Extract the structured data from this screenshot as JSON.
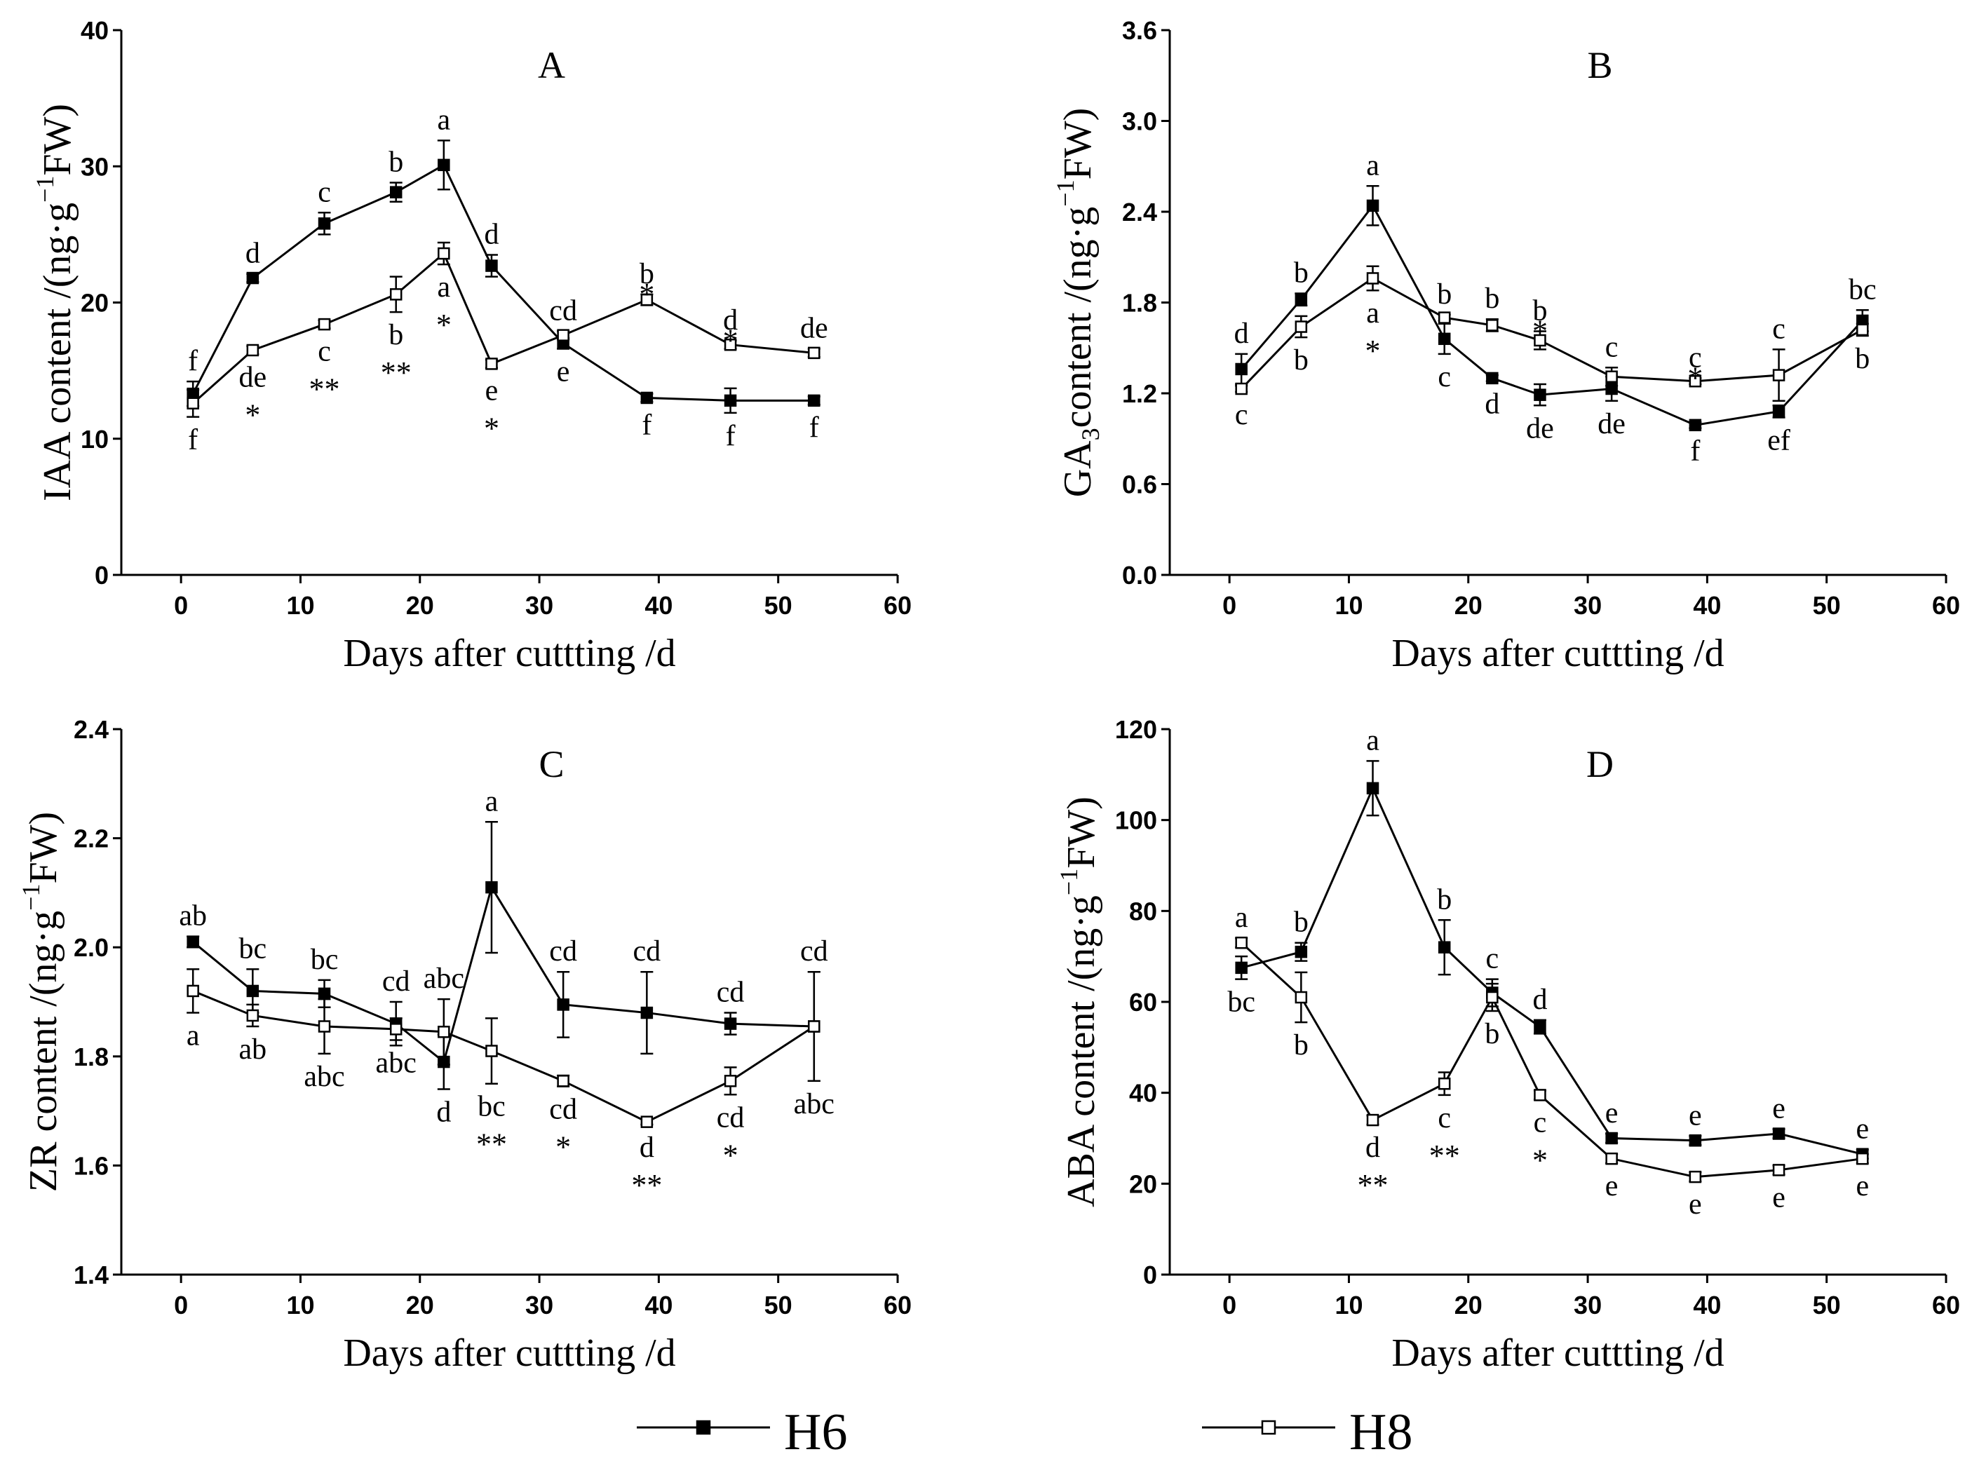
{
  "legend": {
    "position": "bottom",
    "entries": [
      {
        "name": "H6",
        "marker": "filled-square"
      },
      {
        "name": "H8",
        "marker": "open-square"
      }
    ]
  },
  "chart_data": [
    {
      "type": "line",
      "title": "A",
      "xlabel": "Days after cuttting /d",
      "ylabel": {
        "main": "IAA content /(ng·g",
        "sup": "−1",
        "rest": "FW)"
      },
      "xlim": [
        -5,
        60
      ],
      "xticks": [
        0,
        10,
        20,
        30,
        40,
        50,
        60
      ],
      "ylim": [
        0,
        40
      ],
      "yticks": [
        0,
        10,
        20,
        30,
        40
      ],
      "ytick_labels": [
        "0",
        "10",
        "20",
        "30",
        "40"
      ],
      "x": [
        1,
        6,
        12,
        18,
        22,
        26,
        32,
        39,
        46,
        53
      ],
      "series": [
        {
          "name": "H6",
          "values": [
            13.3,
            21.8,
            25.8,
            28.1,
            30.1,
            22.7,
            17.0,
            13.0,
            12.8,
            12.8
          ],
          "errors": [
            0.9,
            0.3,
            0.8,
            0.7,
            1.8,
            0.8,
            0.4,
            0.3,
            0.9,
            0.3
          ],
          "letters": [
            "f",
            "d",
            "c",
            "b",
            "a",
            "d",
            "e",
            "f",
            "f",
            "f"
          ],
          "letter_side": [
            "above",
            "above",
            "above",
            "above",
            "above",
            "above",
            "below",
            "below",
            "below",
            "below"
          ]
        },
        {
          "name": "H8",
          "values": [
            12.6,
            16.5,
            18.4,
            20.6,
            23.6,
            15.5,
            17.6,
            20.2,
            16.9,
            16.3
          ],
          "errors": [
            1.0,
            0.3,
            0.3,
            1.3,
            0.8,
            0.3,
            0.3,
            0.4,
            0.3,
            0.3
          ],
          "letters": [
            "f",
            "de",
            "c",
            "b",
            "a",
            "e",
            "cd",
            "b",
            "d",
            "de"
          ],
          "letter_side": [
            "below",
            "below",
            "below",
            "below",
            "below",
            "below",
            "above",
            "above",
            "above",
            "above"
          ]
        }
      ],
      "significance": [
        {
          "x": 6,
          "mark": "*",
          "side": "below"
        },
        {
          "x": 12,
          "mark": "**",
          "side": "below"
        },
        {
          "x": 18,
          "mark": "**",
          "side": "below"
        },
        {
          "x": 22,
          "mark": "*",
          "side": "below"
        },
        {
          "x": 26,
          "mark": "*",
          "side": "below"
        },
        {
          "x": 39,
          "mark": "*",
          "side": "above"
        },
        {
          "x": 46,
          "mark": "*",
          "side": "above"
        }
      ]
    },
    {
      "type": "line",
      "title": "B",
      "xlabel": "Days after cuttting /d",
      "ylabel": {
        "main": "GA",
        "sub": "3",
        "mid": "content /(ng·g",
        "sup": "−1",
        "rest": "FW)"
      },
      "xlim": [
        -5,
        60
      ],
      "xticks": [
        0,
        10,
        20,
        30,
        40,
        50,
        60
      ],
      "ylim": [
        0,
        3.6
      ],
      "yticks": [
        0,
        0.6,
        1.2,
        1.8,
        2.4,
        3.0,
        3.6
      ],
      "ytick_labels": [
        "0.0",
        "0.6",
        "1.2",
        "1.8",
        "2.4",
        "3.0",
        "3.6"
      ],
      "x": [
        1,
        6,
        12,
        18,
        22,
        26,
        32,
        39,
        46,
        53
      ],
      "series": [
        {
          "name": "H6",
          "values": [
            1.36,
            1.82,
            2.44,
            1.56,
            1.3,
            1.19,
            1.23,
            0.99,
            1.08,
            1.68
          ],
          "errors": [
            0.1,
            0.04,
            0.13,
            0.1,
            0.02,
            0.07,
            0.08,
            0.02,
            0.04,
            0.07
          ],
          "letters": [
            "d",
            "b",
            "a",
            "c",
            "d",
            "de",
            "de",
            "f",
            "ef",
            "bc"
          ],
          "letter_side": [
            "above",
            "above",
            "above",
            "below",
            "below",
            "below",
            "below",
            "below",
            "below",
            "above"
          ]
        },
        {
          "name": "H8",
          "values": [
            1.23,
            1.64,
            1.96,
            1.7,
            1.65,
            1.55,
            1.31,
            1.28,
            1.32,
            1.62
          ],
          "errors": [
            0.02,
            0.07,
            0.08,
            0.02,
            0.04,
            0.06,
            0.06,
            0.02,
            0.17,
            0.04
          ],
          "letters": [
            "c",
            "b",
            "a",
            "b",
            "b",
            "b",
            "c",
            "c",
            "c",
            "b"
          ],
          "letter_side": [
            "below",
            "below",
            "below",
            "above",
            "above",
            "above",
            "above",
            "above",
            "above",
            "below"
          ]
        }
      ],
      "significance": [
        {
          "x": 12,
          "mark": "*",
          "side": "below"
        },
        {
          "x": 26,
          "mark": "*",
          "side": "above"
        },
        {
          "x": 39,
          "mark": "*",
          "side": "above"
        }
      ]
    },
    {
      "type": "line",
      "title": "C",
      "xlabel": "Days after cuttting /d",
      "ylabel": {
        "main": "ZR content /(ng·g",
        "sup": "−1",
        "rest": "FW)"
      },
      "xlim": [
        -5,
        60
      ],
      "xticks": [
        0,
        10,
        20,
        30,
        40,
        50,
        60
      ],
      "ylim": [
        1.4,
        2.4
      ],
      "yticks": [
        1.4,
        1.6,
        1.8,
        2.0,
        2.2,
        2.4
      ],
      "ytick_labels": [
        "1.4",
        "1.6",
        "1.8",
        "2.0",
        "2.2",
        "2.4"
      ],
      "x": [
        1,
        6,
        12,
        18,
        22,
        26,
        32,
        39,
        46,
        53
      ],
      "series": [
        {
          "name": "H6",
          "values": [
            2.01,
            1.92,
            1.915,
            1.86,
            1.79,
            2.11,
            1.895,
            1.88,
            1.86,
            1.855
          ],
          "errors": [
            0.01,
            0.04,
            0.025,
            0.04,
            0.05,
            0.12,
            0.06,
            0.075,
            0.02,
            0.1
          ],
          "letters": [
            "ab",
            "bc",
            "bc",
            "cd",
            "d",
            "a",
            "cd",
            "cd",
            "cd",
            "cd"
          ],
          "letter_side": [
            "above",
            "above",
            "above",
            "above",
            "below",
            "above",
            "above",
            "above",
            "above",
            "above"
          ]
        },
        {
          "name": "H8",
          "values": [
            1.92,
            1.875,
            1.855,
            1.85,
            1.845,
            1.81,
            1.755,
            1.68,
            1.755,
            1.855
          ],
          "errors": [
            0.04,
            0.02,
            0.05,
            0.02,
            0.06,
            0.06,
            0.01,
            0.005,
            0.025,
            0.1
          ],
          "letters": [
            "a",
            "ab",
            "abc",
            "abc",
            "abc",
            "bc",
            "cd",
            "d",
            "cd",
            "abc"
          ],
          "letter_side": [
            "below",
            "below",
            "below",
            "below",
            "above",
            "below",
            "below",
            "below",
            "below",
            "below"
          ]
        }
      ],
      "significance": [
        {
          "x": 26,
          "mark": "**",
          "side": "below"
        },
        {
          "x": 32,
          "mark": "*",
          "side": "below"
        },
        {
          "x": 39,
          "mark": "**",
          "side": "below"
        },
        {
          "x": 46,
          "mark": "*",
          "side": "below"
        }
      ]
    },
    {
      "type": "line",
      "title": "D",
      "xlabel": "Days after cuttting /d",
      "ylabel": {
        "main": "ABA content /(ng·g",
        "sup": "−1",
        "rest": "FW)"
      },
      "xlim": [
        -5,
        60
      ],
      "xticks": [
        0,
        10,
        20,
        30,
        40,
        50,
        60
      ],
      "ylim": [
        0,
        120
      ],
      "yticks": [
        0,
        20,
        40,
        60,
        80,
        100,
        120
      ],
      "ytick_labels": [
        "0",
        "20",
        "40",
        "60",
        "80",
        "100",
        "120"
      ],
      "x": [
        1,
        6,
        12,
        18,
        22,
        26,
        32,
        39,
        46,
        53
      ],
      "series": [
        {
          "name": "H6",
          "values": [
            67.5,
            71,
            107,
            72,
            62,
            54.5,
            30,
            29.5,
            31,
            26.5
          ],
          "errors": [
            2.5,
            2.0,
            6.0,
            6.0,
            3.0,
            1.5,
            1.0,
            1.0,
            1.0,
            1.0
          ],
          "letters": [
            "bc",
            "b",
            "a",
            "b",
            "c",
            "d",
            "e",
            "e",
            "e",
            "e"
          ],
          "letter_side": [
            "below",
            "above",
            "above",
            "above",
            "above",
            "above",
            "above",
            "above",
            "above",
            "above"
          ]
        },
        {
          "name": "H8",
          "values": [
            73,
            61,
            34,
            42,
            61,
            39.5,
            25.5,
            21.5,
            23,
            25.5
          ],
          "errors": [
            1.0,
            5.5,
            1.0,
            2.5,
            3.0,
            1.0,
            1.0,
            1.0,
            1.0,
            1.0
          ],
          "letters": [
            "a",
            "b",
            "d",
            "c",
            "b",
            "c",
            "e",
            "e",
            "e",
            "e"
          ],
          "letter_side": [
            "above",
            "below",
            "below",
            "below",
            "below",
            "below",
            "below",
            "below",
            "below",
            "below"
          ]
        }
      ],
      "significance": [
        {
          "x": 12,
          "mark": "**",
          "side": "below"
        },
        {
          "x": 18,
          "mark": "**",
          "side": "below"
        },
        {
          "x": 26,
          "mark": "*",
          "side": "below"
        }
      ]
    }
  ]
}
